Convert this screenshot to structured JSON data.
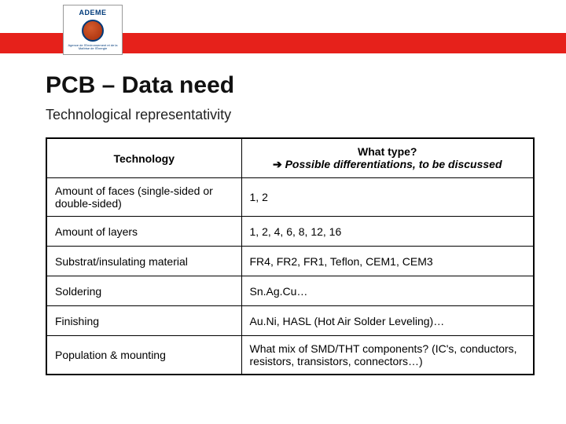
{
  "logo": {
    "top_text": "ADEME",
    "bottom_text": "Agence de l'Environnement et de la Maîtrise de l'Énergie"
  },
  "title": "PCB – Data need",
  "subtitle": "Technological representativity",
  "table": {
    "header": {
      "col1": "Technology",
      "col2_line1": "What type?",
      "col2_arrow": "➔",
      "col2_line2": "Possible differentiations, to be discussed"
    },
    "rows": [
      {
        "tech": "Amount of faces (single-sided or double-sided)",
        "type": "1, 2"
      },
      {
        "tech": "Amount of layers",
        "type": "1, 2, 4, 6, 8, 12, 16"
      },
      {
        "tech": "Substrat/insulating material",
        "type": "FR4, FR2, FR1, Teflon, CEM1, CEM3"
      },
      {
        "tech": "Soldering",
        "type": "Sn.Ag.Cu…"
      },
      {
        "tech": "Finishing",
        "type": "Au.Ni, HASL (Hot Air Solder Leveling)…"
      },
      {
        "tech": "Population & mounting",
        "type": "What mix of SMD/THT components? (IC's, conductors, resistors, transistors, connectors…)"
      }
    ]
  },
  "colors": {
    "red_bar": "#e6211b",
    "border": "#000000",
    "text": "#111111"
  }
}
